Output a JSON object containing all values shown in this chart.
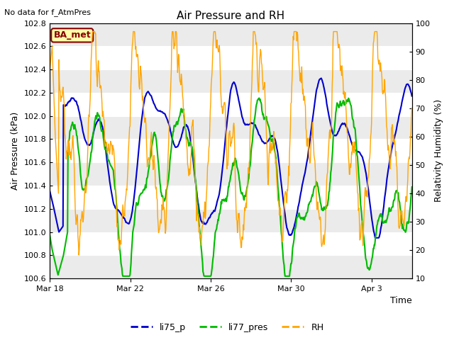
{
  "title": "Air Pressure and RH",
  "top_note": "No data for f_AtmPres",
  "xlabel": "Time",
  "ylabel_left": "Air Pressure (kPa)",
  "ylabel_right": "Relativity Humidity (%)",
  "ylim_left": [
    100.6,
    102.8
  ],
  "ylim_right": [
    10,
    100
  ],
  "yticks_left": [
    100.6,
    100.8,
    101.0,
    101.2,
    101.4,
    101.6,
    101.8,
    102.0,
    102.2,
    102.4,
    102.6,
    102.8
  ],
  "yticks_right": [
    10,
    20,
    30,
    40,
    50,
    60,
    70,
    80,
    90,
    100
  ],
  "xtick_labels": [
    "Mar 18",
    "Mar 22",
    "Mar 26",
    "Mar 30",
    "Apr 3"
  ],
  "xtick_positions": [
    0,
    4,
    8,
    12,
    16
  ],
  "xlim": [
    0,
    18
  ],
  "color_blue": "#0000CC",
  "color_green": "#00BB00",
  "color_orange": "#FFA500",
  "legend_labels": [
    "li75_p",
    "li77_pres",
    "RH"
  ],
  "fig_bg": "#FFFFFF",
  "plot_bg": "#FFFFFF",
  "band_color1": "#EBEBEB",
  "band_color2": "#FFFFFF",
  "grid_color": "#CCCCCC",
  "ba_met_label": "BA_met",
  "ba_met_bg": "#FFFFAA",
  "ba_met_fg": "#880000",
  "linewidth_pressure": 1.5,
  "linewidth_rh": 1.0
}
